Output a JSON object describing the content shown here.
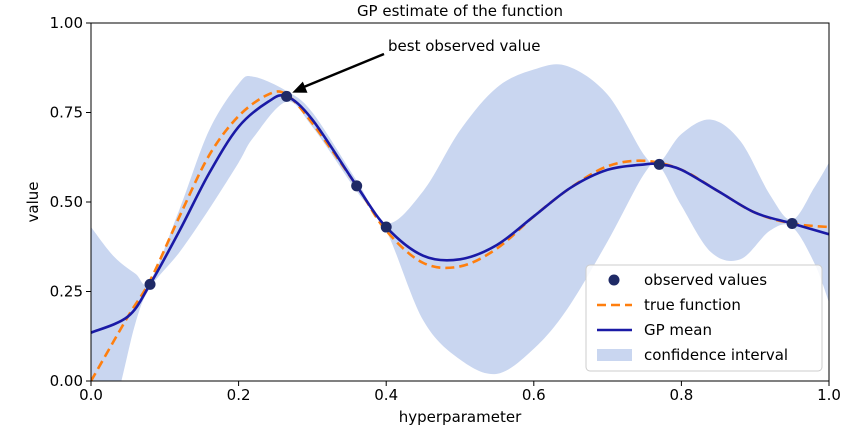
{
  "chart_data": {
    "type": "line",
    "title": "GP estimate of the function",
    "xlabel": "hyperparameter",
    "ylabel": "value",
    "xlim": [
      0.0,
      1.0
    ],
    "ylim": [
      0.0,
      1.0
    ],
    "xticks": [
      0.0,
      0.2,
      0.4,
      0.6,
      0.8,
      1.0
    ],
    "xtick_labels": [
      "0.0",
      "0.2",
      "0.4",
      "0.6",
      "0.8",
      "1.0"
    ],
    "yticks": [
      0.0,
      0.25,
      0.5,
      0.75,
      1.0
    ],
    "ytick_labels": [
      "0.00",
      "0.25",
      "0.50",
      "0.75",
      "1.00"
    ],
    "grid": false,
    "legend_position": "bottom-right",
    "annotation": {
      "text": "best observed value",
      "x": 0.27,
      "y": 0.8
    },
    "observed": {
      "name": "observed values",
      "color": "#1f2a66",
      "x": [
        0.08,
        0.265,
        0.36,
        0.4,
        0.77,
        0.95
      ],
      "y": [
        0.27,
        0.795,
        0.545,
        0.43,
        0.605,
        0.44
      ]
    },
    "true_function": {
      "name": "true function",
      "color": "#ff7f0e",
      "x": [
        0.0,
        0.05,
        0.08,
        0.12,
        0.16,
        0.2,
        0.24,
        0.265,
        0.3,
        0.36,
        0.4,
        0.45,
        0.5,
        0.55,
        0.6,
        0.65,
        0.7,
        0.75,
        0.8,
        0.85,
        0.9,
        0.95,
        1.0
      ],
      "y": [
        0.0,
        0.18,
        0.28,
        0.46,
        0.63,
        0.74,
        0.8,
        0.8,
        0.72,
        0.545,
        0.42,
        0.33,
        0.32,
        0.37,
        0.46,
        0.54,
        0.6,
        0.615,
        0.59,
        0.53,
        0.47,
        0.44,
        0.43
      ]
    },
    "gp_mean": {
      "name": "GP mean",
      "color": "#1a1aa6",
      "x": [
        0.0,
        0.05,
        0.08,
        0.12,
        0.16,
        0.2,
        0.24,
        0.265,
        0.3,
        0.36,
        0.4,
        0.45,
        0.5,
        0.55,
        0.6,
        0.65,
        0.7,
        0.75,
        0.77,
        0.8,
        0.85,
        0.9,
        0.95,
        1.0
      ],
      "y": [
        0.135,
        0.18,
        0.27,
        0.42,
        0.58,
        0.71,
        0.78,
        0.795,
        0.73,
        0.545,
        0.43,
        0.35,
        0.34,
        0.38,
        0.46,
        0.54,
        0.59,
        0.605,
        0.605,
        0.59,
        0.53,
        0.47,
        0.44,
        0.41
      ]
    },
    "confidence": {
      "name": "confidence interval",
      "color": "#c9d6f0",
      "x": [
        0.0,
        0.03,
        0.06,
        0.08,
        0.12,
        0.16,
        0.2,
        0.22,
        0.265,
        0.3,
        0.36,
        0.4,
        0.45,
        0.5,
        0.55,
        0.6,
        0.645,
        0.7,
        0.75,
        0.77,
        0.8,
        0.84,
        0.88,
        0.92,
        0.95,
        0.98,
        1.0
      ],
      "upper": [
        0.43,
        0.35,
        0.3,
        0.28,
        0.48,
        0.7,
        0.83,
        0.85,
        0.81,
        0.75,
        0.56,
        0.44,
        0.53,
        0.7,
        0.82,
        0.87,
        0.88,
        0.8,
        0.63,
        0.61,
        0.69,
        0.73,
        0.67,
        0.52,
        0.45,
        0.54,
        0.61
      ],
      "lower": [
        -0.16,
        -0.08,
        0.16,
        0.26,
        0.36,
        0.48,
        0.61,
        0.68,
        0.78,
        0.71,
        0.53,
        0.42,
        0.17,
        0.06,
        0.02,
        0.09,
        0.2,
        0.39,
        0.58,
        0.6,
        0.49,
        0.36,
        0.34,
        0.42,
        0.43,
        0.33,
        0.22
      ]
    }
  }
}
